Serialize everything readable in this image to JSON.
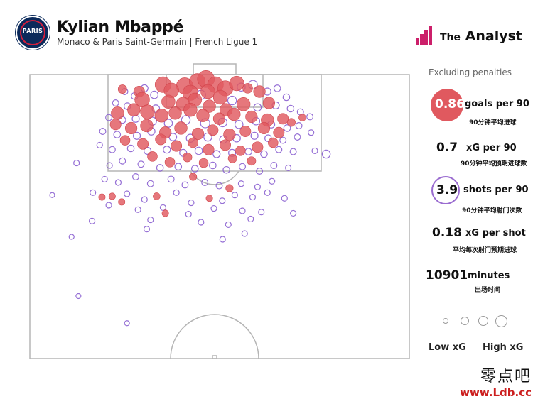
{
  "header": {
    "player": "Kylian Mbappé",
    "subtitle": "Monaco & Paris Saint-Germain | French Ligue 1",
    "club_badge_text": "PARIS",
    "brand": {
      "the": "The",
      "name": "Analyst"
    }
  },
  "panel": {
    "note": "Excluding penalties",
    "stats": [
      {
        "value": "0.86",
        "label": "goals per 90",
        "label_cn": "90分钟平均进球"
      },
      {
        "value": "0.7",
        "label": "xG per 90",
        "label_cn": "90分钟平均预期进球数"
      },
      {
        "value": "3.9",
        "label": "shots per 90",
        "label_cn": "90分钟平均射门次数"
      },
      {
        "value": "0.18",
        "label": "xG per shot",
        "label_cn": "平均每次射门预期进球"
      },
      {
        "value": "10901",
        "label": "minutes",
        "label_cn": "出场时间"
      }
    ],
    "legend": {
      "low": "Low xG",
      "high": "High xG"
    }
  },
  "watermark": {
    "zh": "零点吧",
    "url": "www.Ldb.cc"
  },
  "colors": {
    "goal": "#e0595f",
    "shot": "#8a5fd0",
    "brand": "#cc1f6a",
    "pitch_lines": "#b5b5b5"
  },
  "chart_data": {
    "type": "scatter",
    "title": "Kylian Mbappé",
    "subtitle": "Monaco & Paris Saint-Germain | French Ligue 1",
    "coordinate_system": "attacking half of pitch, goal at top; x = 0-100 across pitch width (left to right), y = distance from goal line in metres",
    "series": [
      {
        "name": "Goal",
        "style": "filled red circles, size proportional to xG",
        "points": [
          {
            "x": 35.1,
            "y": 2.5,
            "xg": 0.55
          },
          {
            "x": 40.8,
            "y": 2.8,
            "xg": 0.6
          },
          {
            "x": 44.1,
            "y": 1.7,
            "xg": 0.55
          },
          {
            "x": 46.4,
            "y": 1.1,
            "xg": 0.65
          },
          {
            "x": 48.9,
            "y": 2.5,
            "xg": 0.55
          },
          {
            "x": 51.5,
            "y": 3.4,
            "xg": 0.5
          },
          {
            "x": 54.5,
            "y": 2.2,
            "xg": 0.45
          },
          {
            "x": 37.3,
            "y": 3.9,
            "xg": 0.45
          },
          {
            "x": 42.3,
            "y": 4.5,
            "xg": 0.5
          },
          {
            "x": 46.9,
            "y": 4.2,
            "xg": 0.4
          },
          {
            "x": 50.2,
            "y": 5.6,
            "xg": 0.4
          },
          {
            "x": 28.8,
            "y": 4.2,
            "xg": 0.2
          },
          {
            "x": 24.4,
            "y": 3.6,
            "xg": 0.1
          },
          {
            "x": 57.4,
            "y": 3.4,
            "xg": 0.15
          },
          {
            "x": 60.5,
            "y": 4.2,
            "xg": 0.25
          },
          {
            "x": 29.6,
            "y": 6.2,
            "xg": 0.45
          },
          {
            "x": 36.5,
            "y": 6.7,
            "xg": 0.35
          },
          {
            "x": 40.4,
            "y": 7.3,
            "xg": 0.4
          },
          {
            "x": 43.5,
            "y": 6.2,
            "xg": 0.35
          },
          {
            "x": 47.3,
            "y": 7.8,
            "xg": 0.3
          },
          {
            "x": 51.7,
            "y": 8.7,
            "xg": 0.3
          },
          {
            "x": 56.3,
            "y": 7.3,
            "xg": 0.35
          },
          {
            "x": 63.0,
            "y": 7.0,
            "xg": 0.25
          },
          {
            "x": 23.1,
            "y": 9.5,
            "xg": 0.3
          },
          {
            "x": 27.4,
            "y": 8.7,
            "xg": 0.3
          },
          {
            "x": 31.0,
            "y": 9.2,
            "xg": 0.4
          },
          {
            "x": 34.7,
            "y": 10.1,
            "xg": 0.35
          },
          {
            "x": 38.3,
            "y": 9.5,
            "xg": 0.3
          },
          {
            "x": 42.3,
            "y": 8.7,
            "xg": 0.35
          },
          {
            "x": 45.6,
            "y": 10.1,
            "xg": 0.3
          },
          {
            "x": 49.9,
            "y": 10.9,
            "xg": 0.25
          },
          {
            "x": 53.8,
            "y": 9.8,
            "xg": 0.3
          },
          {
            "x": 58.4,
            "y": 10.4,
            "xg": 0.25
          },
          {
            "x": 62.6,
            "y": 11.2,
            "xg": 0.3
          },
          {
            "x": 66.7,
            "y": 10.9,
            "xg": 0.2
          },
          {
            "x": 22.6,
            "y": 12.3,
            "xg": 0.2
          },
          {
            "x": 26.7,
            "y": 13.2,
            "xg": 0.25
          },
          {
            "x": 30.8,
            "y": 12.6,
            "xg": 0.3
          },
          {
            "x": 35.7,
            "y": 14.3,
            "xg": 0.25
          },
          {
            "x": 39.8,
            "y": 13.2,
            "xg": 0.3
          },
          {
            "x": 44.3,
            "y": 14.6,
            "xg": 0.25
          },
          {
            "x": 48.2,
            "y": 13.7,
            "xg": 0.2
          },
          {
            "x": 52.6,
            "y": 14.8,
            "xg": 0.25
          },
          {
            "x": 56.8,
            "y": 14.0,
            "xg": 0.2
          },
          {
            "x": 61.7,
            "y": 13.2,
            "xg": 0.25
          },
          {
            "x": 65.6,
            "y": 14.3,
            "xg": 0.2
          },
          {
            "x": 25.1,
            "y": 16.2,
            "xg": 0.15
          },
          {
            "x": 29.8,
            "y": 17.1,
            "xg": 0.2
          },
          {
            "x": 34.5,
            "y": 16.0,
            "xg": 0.2
          },
          {
            "x": 38.6,
            "y": 17.6,
            "xg": 0.2
          },
          {
            "x": 43.0,
            "y": 16.8,
            "xg": 0.15
          },
          {
            "x": 47.1,
            "y": 18.5,
            "xg": 0.2
          },
          {
            "x": 51.5,
            "y": 17.4,
            "xg": 0.2
          },
          {
            "x": 55.5,
            "y": 18.8,
            "xg": 0.15
          },
          {
            "x": 60.0,
            "y": 17.9,
            "xg": 0.2
          },
          {
            "x": 64.1,
            "y": 16.8,
            "xg": 0.15
          },
          {
            "x": 32.3,
            "y": 20.2,
            "xg": 0.15
          },
          {
            "x": 36.9,
            "y": 21.6,
            "xg": 0.15
          },
          {
            "x": 41.5,
            "y": 20.4,
            "xg": 0.12
          },
          {
            "x": 45.8,
            "y": 21.8,
            "xg": 0.12
          },
          {
            "x": 53.4,
            "y": 20.7,
            "xg": 0.1
          },
          {
            "x": 58.4,
            "y": 21.3,
            "xg": 0.1
          },
          {
            "x": 68.9,
            "y": 11.8,
            "xg": 0.08
          },
          {
            "x": 71.8,
            "y": 10.6,
            "xg": 0.05
          },
          {
            "x": 43.0,
            "y": 25.2,
            "xg": 0.06
          },
          {
            "x": 52.6,
            "y": 28.0,
            "xg": 0.06
          },
          {
            "x": 33.4,
            "y": 30.0,
            "xg": 0.05
          },
          {
            "x": 19.0,
            "y": 30.2,
            "xg": 0.04
          },
          {
            "x": 24.2,
            "y": 31.4,
            "xg": 0.04
          },
          {
            "x": 47.3,
            "y": 30.5,
            "xg": 0.04
          },
          {
            "x": 35.7,
            "y": 34.2,
            "xg": 0.04
          },
          {
            "x": 21.7,
            "y": 30.0,
            "xg": 0.04
          }
        ]
      },
      {
        "name": "Shot",
        "style": "hollow purple circles, size proportional to xG",
        "points": [
          {
            "x": 25.0,
            "y": 4.2,
            "xg": 0.03
          },
          {
            "x": 27.6,
            "y": 5.3,
            "xg": 0.04
          },
          {
            "x": 30.2,
            "y": 3.4,
            "xg": 0.05
          },
          {
            "x": 32.8,
            "y": 5.0,
            "xg": 0.06
          },
          {
            "x": 55.7,
            "y": 3.1,
            "xg": 0.08
          },
          {
            "x": 58.8,
            "y": 2.5,
            "xg": 0.1
          },
          {
            "x": 62.6,
            "y": 4.2,
            "xg": 0.05
          },
          {
            "x": 65.2,
            "y": 3.4,
            "xg": 0.04
          },
          {
            "x": 67.6,
            "y": 5.6,
            "xg": 0.04
          },
          {
            "x": 22.6,
            "y": 7.0,
            "xg": 0.03
          },
          {
            "x": 25.7,
            "y": 7.8,
            "xg": 0.04
          },
          {
            "x": 33.2,
            "y": 8.4,
            "xg": 0.06
          },
          {
            "x": 45.1,
            "y": 5.0,
            "xg": 0.12
          },
          {
            "x": 53.3,
            "y": 6.4,
            "xg": 0.1
          },
          {
            "x": 60.0,
            "y": 8.1,
            "xg": 0.06
          },
          {
            "x": 64.8,
            "y": 7.6,
            "xg": 0.05
          },
          {
            "x": 68.7,
            "y": 8.4,
            "xg": 0.04
          },
          {
            "x": 71.3,
            "y": 9.2,
            "xg": 0.03
          },
          {
            "x": 73.8,
            "y": 10.4,
            "xg": 0.03
          },
          {
            "x": 20.8,
            "y": 10.6,
            "xg": 0.03
          },
          {
            "x": 24.4,
            "y": 11.2,
            "xg": 0.04
          },
          {
            "x": 27.9,
            "y": 10.9,
            "xg": 0.05
          },
          {
            "x": 32.3,
            "y": 11.5,
            "xg": 0.08
          },
          {
            "x": 36.5,
            "y": 12.0,
            "xg": 0.08
          },
          {
            "x": 41.1,
            "y": 11.2,
            "xg": 0.1
          },
          {
            "x": 46.2,
            "y": 12.0,
            "xg": 0.12
          },
          {
            "x": 50.8,
            "y": 11.8,
            "xg": 0.1
          },
          {
            "x": 55.1,
            "y": 12.3,
            "xg": 0.08
          },
          {
            "x": 59.6,
            "y": 11.5,
            "xg": 0.06
          },
          {
            "x": 63.6,
            "y": 12.3,
            "xg": 0.05
          },
          {
            "x": 67.8,
            "y": 13.2,
            "xg": 0.04
          },
          {
            "x": 70.9,
            "y": 12.6,
            "xg": 0.03
          },
          {
            "x": 19.2,
            "y": 14.0,
            "xg": 0.03
          },
          {
            "x": 23.0,
            "y": 14.8,
            "xg": 0.04
          },
          {
            "x": 28.2,
            "y": 15.1,
            "xg": 0.05
          },
          {
            "x": 32.0,
            "y": 14.0,
            "xg": 0.06
          },
          {
            "x": 37.7,
            "y": 15.4,
            "xg": 0.06
          },
          {
            "x": 42.3,
            "y": 15.7,
            "xg": 0.08
          },
          {
            "x": 46.9,
            "y": 15.4,
            "xg": 0.08
          },
          {
            "x": 51.0,
            "y": 16.0,
            "xg": 0.06
          },
          {
            "x": 54.5,
            "y": 15.7,
            "xg": 0.06
          },
          {
            "x": 59.2,
            "y": 15.1,
            "xg": 0.05
          },
          {
            "x": 62.8,
            "y": 15.7,
            "xg": 0.04
          },
          {
            "x": 66.7,
            "y": 16.2,
            "xg": 0.03
          },
          {
            "x": 70.5,
            "y": 15.4,
            "xg": 0.03
          },
          {
            "x": 74.1,
            "y": 14.3,
            "xg": 0.02
          },
          {
            "x": 18.4,
            "y": 17.4,
            "xg": 0.02
          },
          {
            "x": 21.7,
            "y": 18.5,
            "xg": 0.03
          },
          {
            "x": 26.6,
            "y": 18.2,
            "xg": 0.04
          },
          {
            "x": 31.0,
            "y": 18.8,
            "xg": 0.05
          },
          {
            "x": 36.1,
            "y": 18.5,
            "xg": 0.05
          },
          {
            "x": 40.4,
            "y": 19.3,
            "xg": 0.05
          },
          {
            "x": 44.5,
            "y": 18.8,
            "xg": 0.06
          },
          {
            "x": 49.2,
            "y": 19.6,
            "xg": 0.05
          },
          {
            "x": 53.3,
            "y": 19.3,
            "xg": 0.05
          },
          {
            "x": 57.6,
            "y": 19.0,
            "xg": 0.04
          },
          {
            "x": 61.7,
            "y": 19.6,
            "xg": 0.04
          },
          {
            "x": 65.6,
            "y": 18.5,
            "xg": 0.03
          },
          {
            "x": 69.4,
            "y": 19.0,
            "xg": 0.03
          },
          {
            "x": 75.1,
            "y": 18.8,
            "xg": 0.02
          },
          {
            "x": 78.1,
            "y": 19.6,
            "xg": 0.08
          },
          {
            "x": 21.0,
            "y": 22.4,
            "xg": 0.02
          },
          {
            "x": 24.4,
            "y": 21.3,
            "xg": 0.03
          },
          {
            "x": 29.3,
            "y": 22.1,
            "xg": 0.03
          },
          {
            "x": 34.3,
            "y": 23.0,
            "xg": 0.04
          },
          {
            "x": 39.1,
            "y": 22.7,
            "xg": 0.04
          },
          {
            "x": 43.5,
            "y": 23.2,
            "xg": 0.04
          },
          {
            "x": 48.2,
            "y": 22.4,
            "xg": 0.04
          },
          {
            "x": 51.8,
            "y": 23.5,
            "xg": 0.04
          },
          {
            "x": 56.0,
            "y": 22.7,
            "xg": 0.03
          },
          {
            "x": 60.5,
            "y": 23.8,
            "xg": 0.03
          },
          {
            "x": 64.3,
            "y": 22.4,
            "xg": 0.03
          },
          {
            "x": 68.1,
            "y": 23.0,
            "xg": 0.02
          },
          {
            "x": 12.3,
            "y": 21.8,
            "xg": 0.02
          },
          {
            "x": 19.7,
            "y": 25.8,
            "xg": 0.02
          },
          {
            "x": 23.3,
            "y": 26.6,
            "xg": 0.02
          },
          {
            "x": 27.9,
            "y": 25.2,
            "xg": 0.03
          },
          {
            "x": 31.8,
            "y": 26.9,
            "xg": 0.03
          },
          {
            "x": 37.2,
            "y": 25.8,
            "xg": 0.03
          },
          {
            "x": 40.9,
            "y": 27.2,
            "xg": 0.03
          },
          {
            "x": 46.1,
            "y": 26.6,
            "xg": 0.03
          },
          {
            "x": 49.9,
            "y": 27.4,
            "xg": 0.03
          },
          {
            "x": 55.7,
            "y": 26.9,
            "xg": 0.02
          },
          {
            "x": 60.0,
            "y": 27.7,
            "xg": 0.02
          },
          {
            "x": 63.8,
            "y": 26.3,
            "xg": 0.02
          },
          {
            "x": 16.6,
            "y": 29.1,
            "xg": 0.02
          },
          {
            "x": 25.6,
            "y": 29.4,
            "xg": 0.02
          },
          {
            "x": 30.2,
            "y": 30.8,
            "xg": 0.02
          },
          {
            "x": 38.6,
            "y": 29.1,
            "xg": 0.02
          },
          {
            "x": 42.5,
            "y": 31.6,
            "xg": 0.02
          },
          {
            "x": 50.7,
            "y": 31.1,
            "xg": 0.02
          },
          {
            "x": 54.0,
            "y": 29.7,
            "xg": 0.02
          },
          {
            "x": 58.7,
            "y": 30.2,
            "xg": 0.02
          },
          {
            "x": 62.6,
            "y": 29.1,
            "xg": 0.02
          },
          {
            "x": 67.1,
            "y": 30.5,
            "xg": 0.02
          },
          {
            "x": 5.9,
            "y": 29.7,
            "xg": 0.01
          },
          {
            "x": 20.8,
            "y": 32.2,
            "xg": 0.02
          },
          {
            "x": 28.5,
            "y": 33.3,
            "xg": 0.02
          },
          {
            "x": 35.1,
            "y": 32.8,
            "xg": 0.02
          },
          {
            "x": 41.8,
            "y": 34.4,
            "xg": 0.02
          },
          {
            "x": 48.5,
            "y": 33.0,
            "xg": 0.02
          },
          {
            "x": 56.0,
            "y": 33.6,
            "xg": 0.02
          },
          {
            "x": 61.0,
            "y": 33.9,
            "xg": 0.02
          },
          {
            "x": 69.4,
            "y": 34.2,
            "xg": 0.02
          },
          {
            "x": 16.4,
            "y": 36.1,
            "xg": 0.02
          },
          {
            "x": 31.8,
            "y": 35.8,
            "xg": 0.02
          },
          {
            "x": 45.1,
            "y": 36.4,
            "xg": 0.02
          },
          {
            "x": 52.3,
            "y": 37.0,
            "xg": 0.02
          },
          {
            "x": 58.2,
            "y": 35.6,
            "xg": 0.02
          },
          {
            "x": 30.8,
            "y": 38.1,
            "xg": 0.02
          },
          {
            "x": 11.0,
            "y": 40.0,
            "xg": 0.01
          },
          {
            "x": 56.6,
            "y": 39.2,
            "xg": 0.02
          },
          {
            "x": 50.8,
            "y": 40.6,
            "xg": 0.02
          },
          {
            "x": 12.8,
            "y": 54.6,
            "xg": 0.01
          },
          {
            "x": 25.6,
            "y": 61.3,
            "xg": 0.01
          }
        ]
      }
    ],
    "xlim": [
      0,
      100
    ],
    "ylim": [
      0,
      70
    ],
    "legend": {
      "low": "Low xG",
      "high": "High xG",
      "placement": "bottom-right"
    },
    "grid": false
  }
}
